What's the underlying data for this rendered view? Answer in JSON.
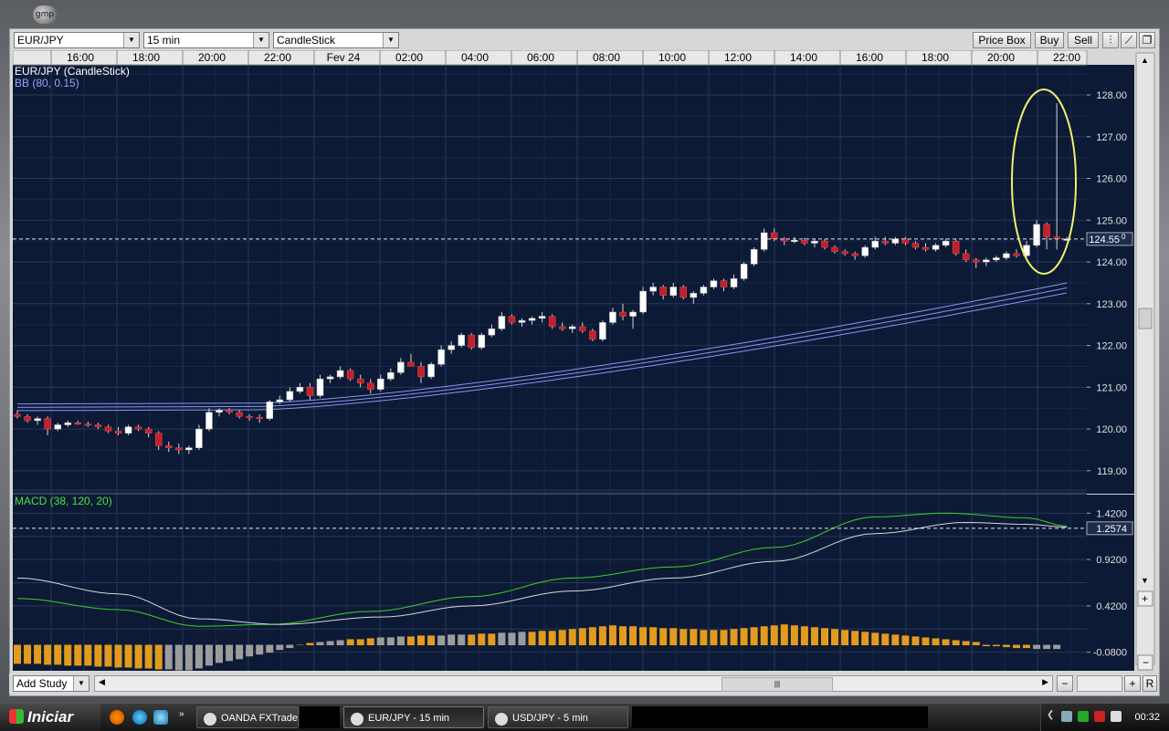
{
  "desktop": {
    "icon_label": "gmp"
  },
  "toolbar": {
    "instrument": "EUR/JPY",
    "interval": "15 min",
    "chart_type": "CandleStick",
    "price_box_label": "Price Box",
    "buy_label": "Buy",
    "sell_label": "Sell"
  },
  "chart_data": [
    {
      "type": "candlestick",
      "title": "EUR/JPY (CandleStick)",
      "indicator": "BB (80, 0.15)",
      "time_ticks": [
        "16:00",
        "18:00",
        "20:00",
        "22:00",
        "Fev 24",
        "02:00",
        "04:00",
        "06:00",
        "08:00",
        "10:00",
        "12:00",
        "14:00",
        "16:00",
        "18:00",
        "20:00",
        "22:00"
      ],
      "y_ticks": [
        "128.00",
        "127.00",
        "126.00",
        "125.00",
        "124.00",
        "123.00",
        "122.00",
        "121.00",
        "120.00",
        "119.00"
      ],
      "ylim": [
        118.45,
        128.7
      ],
      "current_price": "124.55",
      "current_price_superscript": "0",
      "current_price_value": 124.55,
      "candles": [
        [
          120.35,
          120.45,
          120.25,
          120.3
        ],
        [
          120.3,
          120.35,
          120.15,
          120.2
        ],
        [
          120.2,
          120.3,
          120.1,
          120.25
        ],
        [
          120.25,
          120.3,
          119.85,
          120.0
        ],
        [
          120.0,
          120.15,
          119.95,
          120.1
        ],
        [
          120.1,
          120.2,
          120.05,
          120.15
        ],
        [
          120.15,
          120.2,
          120.1,
          120.12
        ],
        [
          120.12,
          120.18,
          120.05,
          120.1
        ],
        [
          120.1,
          120.15,
          120.0,
          120.05
        ],
        [
          120.05,
          120.1,
          119.9,
          119.95
        ],
        [
          119.95,
          120.05,
          119.85,
          119.9
        ],
        [
          119.9,
          120.1,
          119.85,
          120.05
        ],
        [
          120.05,
          120.1,
          119.95,
          120.0
        ],
        [
          120.0,
          120.05,
          119.8,
          119.9
        ],
        [
          119.9,
          119.95,
          119.5,
          119.6
        ],
        [
          119.6,
          119.7,
          119.45,
          119.55
        ],
        [
          119.55,
          119.65,
          119.4,
          119.5
        ],
        [
          119.5,
          119.6,
          119.4,
          119.55
        ],
        [
          119.55,
          120.1,
          119.5,
          120.0
        ],
        [
          120.0,
          120.5,
          119.95,
          120.4
        ],
        [
          120.4,
          120.5,
          120.3,
          120.45
        ],
        [
          120.45,
          120.5,
          120.35,
          120.4
        ],
        [
          120.4,
          120.45,
          120.25,
          120.3
        ],
        [
          120.3,
          120.35,
          120.2,
          120.28
        ],
        [
          120.28,
          120.35,
          120.15,
          120.25
        ],
        [
          120.25,
          120.7,
          120.2,
          120.65
        ],
        [
          120.65,
          120.8,
          120.6,
          120.7
        ],
        [
          120.7,
          121.0,
          120.65,
          120.9
        ],
        [
          120.9,
          121.1,
          120.85,
          121.0
        ],
        [
          121.0,
          121.1,
          120.7,
          120.8
        ],
        [
          120.8,
          121.3,
          120.75,
          121.2
        ],
        [
          121.2,
          121.3,
          121.1,
          121.25
        ],
        [
          121.25,
          121.5,
          121.2,
          121.4
        ],
        [
          121.4,
          121.45,
          121.15,
          121.2
        ],
        [
          121.2,
          121.3,
          121.0,
          121.1
        ],
        [
          121.1,
          121.2,
          120.85,
          120.95
        ],
        [
          120.95,
          121.3,
          120.9,
          121.2
        ],
        [
          121.2,
          121.45,
          121.15,
          121.35
        ],
        [
          121.35,
          121.7,
          121.3,
          121.6
        ],
        [
          121.6,
          121.8,
          121.5,
          121.5
        ],
        [
          121.5,
          121.6,
          121.1,
          121.25
        ],
        [
          121.25,
          121.6,
          121.2,
          121.55
        ],
        [
          121.55,
          122.0,
          121.5,
          121.9
        ],
        [
          121.9,
          122.1,
          121.8,
          122.0
        ],
        [
          122.0,
          122.3,
          121.95,
          122.25
        ],
        [
          122.25,
          122.3,
          121.9,
          121.95
        ],
        [
          121.95,
          122.3,
          121.9,
          122.25
        ],
        [
          122.25,
          122.5,
          122.2,
          122.4
        ],
        [
          122.4,
          122.8,
          122.35,
          122.7
        ],
        [
          122.7,
          122.75,
          122.5,
          122.55
        ],
        [
          122.55,
          122.65,
          122.45,
          122.6
        ],
        [
          122.6,
          122.7,
          122.5,
          122.65
        ],
        [
          122.65,
          122.8,
          122.55,
          122.7
        ],
        [
          122.7,
          122.75,
          122.4,
          122.45
        ],
        [
          122.45,
          122.55,
          122.35,
          122.4
        ],
        [
          122.4,
          122.5,
          122.3,
          122.45
        ],
        [
          122.45,
          122.55,
          122.3,
          122.35
        ],
        [
          122.35,
          122.4,
          122.1,
          122.15
        ],
        [
          122.15,
          122.6,
          122.1,
          122.55
        ],
        [
          122.55,
          122.9,
          122.5,
          122.8
        ],
        [
          122.8,
          123.0,
          122.6,
          122.7
        ],
        [
          122.7,
          122.85,
          122.4,
          122.8
        ],
        [
          122.8,
          123.4,
          122.75,
          123.3
        ],
        [
          123.3,
          123.5,
          123.2,
          123.4
        ],
        [
          123.4,
          123.45,
          123.1,
          123.2
        ],
        [
          123.2,
          123.5,
          123.15,
          123.4
        ],
        [
          123.4,
          123.45,
          123.1,
          123.15
        ],
        [
          123.15,
          123.3,
          123.0,
          123.25
        ],
        [
          123.25,
          123.45,
          123.2,
          123.4
        ],
        [
          123.4,
          123.6,
          123.35,
          123.55
        ],
        [
          123.55,
          123.6,
          123.3,
          123.4
        ],
        [
          123.4,
          123.7,
          123.35,
          123.6
        ],
        [
          123.6,
          124.0,
          123.55,
          123.95
        ],
        [
          123.95,
          124.35,
          123.9,
          124.3
        ],
        [
          124.3,
          124.8,
          124.25,
          124.7
        ],
        [
          124.7,
          124.8,
          124.5,
          124.55
        ],
        [
          124.55,
          124.6,
          124.4,
          124.5
        ],
        [
          124.5,
          124.6,
          124.45,
          124.52
        ],
        [
          124.52,
          124.58,
          124.4,
          124.45
        ],
        [
          124.45,
          124.55,
          124.35,
          124.5
        ],
        [
          124.5,
          124.55,
          124.3,
          124.35
        ],
        [
          124.35,
          124.4,
          124.2,
          124.25
        ],
        [
          124.25,
          124.3,
          124.15,
          124.2
        ],
        [
          124.2,
          124.25,
          124.05,
          124.15
        ],
        [
          124.15,
          124.4,
          124.1,
          124.35
        ],
        [
          124.35,
          124.6,
          124.3,
          124.5
        ],
        [
          124.5,
          124.6,
          124.4,
          124.45
        ],
        [
          124.45,
          124.6,
          124.4,
          124.55
        ],
        [
          124.55,
          124.6,
          124.4,
          124.45
        ],
        [
          124.45,
          124.5,
          124.3,
          124.35
        ],
        [
          124.35,
          124.45,
          124.25,
          124.3
        ],
        [
          124.3,
          124.45,
          124.25,
          124.4
        ],
        [
          124.4,
          124.55,
          124.35,
          124.5
        ],
        [
          124.5,
          124.55,
          124.15,
          124.2
        ],
        [
          124.2,
          124.3,
          124.0,
          124.05
        ],
        [
          124.05,
          124.1,
          123.85,
          124.0
        ],
        [
          124.0,
          124.1,
          123.9,
          124.05
        ],
        [
          124.05,
          124.15,
          124.0,
          124.1
        ],
        [
          124.1,
          124.25,
          124.05,
          124.2
        ],
        [
          124.2,
          124.3,
          124.1,
          124.15
        ],
        [
          124.15,
          124.5,
          124.1,
          124.4
        ],
        [
          124.4,
          125.0,
          124.35,
          124.9
        ],
        [
          124.9,
          124.95,
          124.3,
          124.6
        ],
        [
          124.6,
          127.8,
          124.3,
          124.55
        ],
        [
          124.55,
          124.6,
          124.5,
          124.55
        ]
      ],
      "bollinger": {
        "start": [
          120.6,
          120.52,
          120.44
        ],
        "mid": [
          120.62,
          120.54,
          120.46
        ],
        "end": [
          123.5,
          123.38,
          123.26
        ]
      },
      "highlight": "spike-ellipse"
    },
    {
      "type": "line",
      "title": "MACD (38, 120, 20)",
      "y_ticks": [
        "1.4200",
        "0.9200",
        "0.4200",
        "-0.0800"
      ],
      "ylim": [
        -0.28,
        1.62
      ],
      "current_value": "1.2574",
      "current_value_num": 1.2574,
      "series": [
        {
          "key": "macd",
          "color": "#3ecf2e",
          "points": [
            [
              0,
              0.5
            ],
            [
              10,
              0.38
            ],
            [
              18,
              0.2
            ],
            [
              25,
              0.22
            ],
            [
              35,
              0.36
            ],
            [
              45,
              0.52
            ],
            [
              55,
              0.72
            ],
            [
              65,
              0.84
            ],
            [
              75,
              1.05
            ],
            [
              85,
              1.38
            ],
            [
              92,
              1.42
            ],
            [
              100,
              1.37
            ],
            [
              104,
              1.28
            ]
          ]
        },
        {
          "key": "signal",
          "color": "#d8d8d8",
          "points": [
            [
              0,
              0.72
            ],
            [
              10,
              0.55
            ],
            [
              18,
              0.28
            ],
            [
              26,
              0.22
            ],
            [
              36,
              0.3
            ],
            [
              45,
              0.42
            ],
            [
              55,
              0.58
            ],
            [
              65,
              0.72
            ],
            [
              75,
              0.9
            ],
            [
              85,
              1.2
            ],
            [
              94,
              1.32
            ],
            [
              100,
              1.3
            ],
            [
              104,
              1.27
            ]
          ]
        }
      ],
      "histogram": [
        -0.2,
        -0.2,
        -0.2,
        -0.21,
        -0.21,
        -0.22,
        -0.22,
        -0.22,
        -0.23,
        -0.23,
        -0.24,
        -0.24,
        -0.25,
        -0.25,
        -0.26,
        -0.26,
        -0.27,
        -0.27,
        -0.25,
        -0.22,
        -0.19,
        -0.17,
        -0.15,
        -0.12,
        -0.1,
        -0.08,
        -0.05,
        -0.03,
        0.0,
        0.02,
        0.03,
        0.04,
        0.05,
        0.06,
        0.06,
        0.07,
        0.08,
        0.08,
        0.09,
        0.09,
        0.1,
        0.1,
        0.1,
        0.11,
        0.11,
        0.11,
        0.12,
        0.12,
        0.13,
        0.13,
        0.14,
        0.14,
        0.15,
        0.15,
        0.16,
        0.17,
        0.18,
        0.19,
        0.2,
        0.21,
        0.2,
        0.2,
        0.19,
        0.19,
        0.18,
        0.18,
        0.17,
        0.17,
        0.16,
        0.16,
        0.16,
        0.17,
        0.18,
        0.19,
        0.2,
        0.21,
        0.22,
        0.21,
        0.2,
        0.19,
        0.18,
        0.17,
        0.16,
        0.15,
        0.14,
        0.13,
        0.12,
        0.11,
        0.1,
        0.09,
        0.08,
        0.07,
        0.06,
        0.05,
        0.04,
        0.03,
        -0.01,
        -0.01,
        -0.02,
        -0.03,
        -0.03,
        -0.04,
        -0.04,
        -0.04
      ],
      "histogram_colors": {
        "up": "#e39b1d",
        "down": "#9c9c9c"
      }
    }
  ],
  "statusbar": {
    "add_study": "Add Study"
  },
  "taskbar": {
    "start_label": "Iniciar",
    "tasks": [
      {
        "label": "OANDA FXTrade",
        "active": false
      },
      {
        "label": "EUR/JPY - 15 min",
        "active": true
      },
      {
        "label": "USD/JPY - 5 min",
        "active": false
      }
    ],
    "clock": "00:32"
  },
  "colors": {
    "chart_bg": "#0c1a35",
    "grid": "#263858",
    "candle_up": "#ffffff",
    "candle_down": "#c4202a",
    "bollinger": "#8a94f0",
    "ellipse": "#f0ee70"
  }
}
